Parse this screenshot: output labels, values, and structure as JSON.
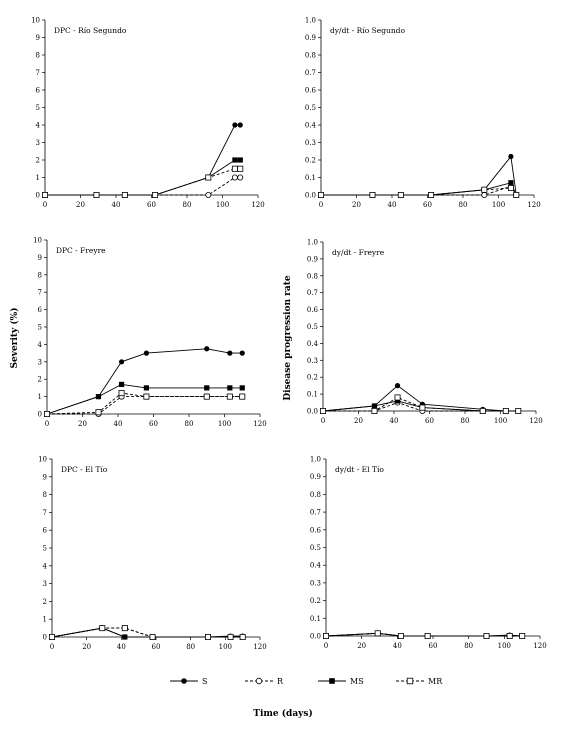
{
  "figure": {
    "ylabel_severity": "Severity (%)",
    "ylabel_rate": "Disease progression rate",
    "xlabel": "Time (days)",
    "legend": [
      {
        "key": "S",
        "label": "S"
      },
      {
        "key": "R",
        "label": "R"
      },
      {
        "key": "MS",
        "label": "MS"
      },
      {
        "key": "MR",
        "label": "MR"
      }
    ]
  },
  "chart_data": [
    {
      "type": "line",
      "title": "DPC - Río Segundo",
      "xlim": [
        0,
        120
      ],
      "ylim": [
        0,
        10
      ],
      "xticks": [
        0,
        20,
        40,
        60,
        80,
        100,
        120
      ],
      "yticks": [
        0,
        1,
        2,
        3,
        4,
        5,
        6,
        7,
        8,
        9,
        10
      ],
      "series": [
        {
          "name": "S",
          "points": [
            [
              0,
              0
            ],
            [
              29,
              0
            ],
            [
              45,
              0
            ],
            [
              62,
              0
            ],
            [
              92,
              1
            ],
            [
              107,
              4
            ],
            [
              110,
              4
            ]
          ]
        },
        {
          "name": "R",
          "points": [
            [
              0,
              0
            ],
            [
              29,
              0
            ],
            [
              45,
              0
            ],
            [
              62,
              0
            ],
            [
              92,
              0
            ],
            [
              107,
              1
            ],
            [
              110,
              1
            ]
          ]
        },
        {
          "name": "MS",
          "points": [
            [
              0,
              0
            ],
            [
              29,
              0
            ],
            [
              45,
              0
            ],
            [
              62,
              0
            ],
            [
              92,
              1
            ],
            [
              107,
              2
            ],
            [
              110,
              2
            ]
          ]
        },
        {
          "name": "MR",
          "points": [
            [
              0,
              0
            ],
            [
              29,
              0
            ],
            [
              45,
              0
            ],
            [
              62,
              0
            ],
            [
              92,
              1
            ],
            [
              107,
              1.5
            ],
            [
              110,
              1.5
            ]
          ]
        }
      ]
    },
    {
      "type": "line",
      "title": "dy/dt - Río Segundo",
      "xlim": [
        0,
        120
      ],
      "ylim": [
        0,
        1
      ],
      "xticks": [
        0,
        20,
        40,
        60,
        80,
        100,
        120
      ],
      "yticks": [
        "0.0",
        "0.1",
        "0.2",
        "0.3",
        "0.4",
        "0.5",
        "0.6",
        "0.7",
        "0.8",
        "0.9",
        "1.0"
      ],
      "series": [
        {
          "name": "S",
          "points": [
            [
              0,
              0
            ],
            [
              29,
              0
            ],
            [
              45,
              0
            ],
            [
              62,
              0
            ],
            [
              92,
              0.03
            ],
            [
              107,
              0.22
            ],
            [
              110,
              0
            ]
          ]
        },
        {
          "name": "R",
          "points": [
            [
              0,
              0
            ],
            [
              29,
              0
            ],
            [
              45,
              0
            ],
            [
              62,
              0
            ],
            [
              92,
              0
            ],
            [
              107,
              0.05
            ],
            [
              110,
              0
            ]
          ]
        },
        {
          "name": "MS",
          "points": [
            [
              0,
              0
            ],
            [
              29,
              0
            ],
            [
              45,
              0
            ],
            [
              62,
              0
            ],
            [
              92,
              0.03
            ],
            [
              107,
              0.07
            ],
            [
              110,
              0
            ]
          ]
        },
        {
          "name": "MR",
          "points": [
            [
              0,
              0
            ],
            [
              29,
              0
            ],
            [
              45,
              0
            ],
            [
              62,
              0
            ],
            [
              92,
              0.03
            ],
            [
              107,
              0.04
            ],
            [
              110,
              0
            ]
          ]
        }
      ]
    },
    {
      "type": "line",
      "title": "DPC - Freyre",
      "xlim": [
        0,
        120
      ],
      "ylim": [
        0,
        10
      ],
      "xticks": [
        0,
        20,
        40,
        60,
        80,
        100,
        120
      ],
      "yticks": [
        0,
        1,
        2,
        3,
        4,
        5,
        6,
        7,
        8,
        9,
        10
      ],
      "series": [
        {
          "name": "S",
          "points": [
            [
              0,
              0
            ],
            [
              29,
              1
            ],
            [
              42,
              3
            ],
            [
              56,
              3.5
            ],
            [
              90,
              3.75
            ],
            [
              103,
              3.5
            ],
            [
              110,
              3.5
            ]
          ]
        },
        {
          "name": "R",
          "points": [
            [
              0,
              0
            ],
            [
              29,
              0
            ],
            [
              42,
              1
            ],
            [
              56,
              1
            ],
            [
              90,
              1
            ],
            [
              103,
              1
            ],
            [
              110,
              1
            ]
          ]
        },
        {
          "name": "MS",
          "points": [
            [
              0,
              0
            ],
            [
              29,
              1
            ],
            [
              42,
              1.7
            ],
            [
              56,
              1.5
            ],
            [
              90,
              1.5
            ],
            [
              103,
              1.5
            ],
            [
              110,
              1.5
            ]
          ]
        },
        {
          "name": "MR",
          "points": [
            [
              0,
              0
            ],
            [
              29,
              0.1
            ],
            [
              42,
              1.2
            ],
            [
              56,
              1
            ],
            [
              90,
              1
            ],
            [
              103,
              1
            ],
            [
              110,
              1
            ]
          ]
        }
      ]
    },
    {
      "type": "line",
      "title": "dy/dt - Freyre",
      "xlim": [
        0,
        120
      ],
      "ylim": [
        0,
        1
      ],
      "xticks": [
        0,
        20,
        40,
        60,
        80,
        100,
        120
      ],
      "yticks": [
        "0.0",
        "0.1",
        "0.2",
        "0.3",
        "0.4",
        "0.5",
        "0.6",
        "0.7",
        "0.8",
        "0.9",
        "1.0"
      ],
      "series": [
        {
          "name": "S",
          "points": [
            [
              0,
              0
            ],
            [
              29,
              0.03
            ],
            [
              42,
              0.15
            ],
            [
              56,
              0.04
            ],
            [
              90,
              0.01
            ],
            [
              103,
              0
            ],
            [
              110,
              0
            ]
          ]
        },
        {
          "name": "R",
          "points": [
            [
              0,
              0
            ],
            [
              29,
              0
            ],
            [
              42,
              0.05
            ],
            [
              56,
              0
            ],
            [
              90,
              0
            ],
            [
              103,
              0
            ],
            [
              110,
              0
            ]
          ]
        },
        {
          "name": "MS",
          "points": [
            [
              0,
              0
            ],
            [
              29,
              0.03
            ],
            [
              42,
              0.06
            ],
            [
              56,
              0.02
            ],
            [
              90,
              0
            ],
            [
              103,
              0
            ],
            [
              110,
              0
            ]
          ]
        },
        {
          "name": "MR",
          "points": [
            [
              0,
              0
            ],
            [
              29,
              0
            ],
            [
              42,
              0.08
            ],
            [
              56,
              0.02
            ],
            [
              90,
              0
            ],
            [
              103,
              0
            ],
            [
              110,
              0
            ]
          ]
        }
      ]
    },
    {
      "type": "line",
      "title": "DPC - El Tío",
      "xlim": [
        0,
        120
      ],
      "ylim": [
        0,
        10
      ],
      "xticks": [
        0,
        20,
        40,
        60,
        80,
        100,
        120
      ],
      "yticks": [
        0,
        1,
        2,
        3,
        4,
        5,
        6,
        7,
        8,
        9,
        10
      ],
      "series": [
        {
          "name": "S",
          "points": [
            [
              0,
              0
            ],
            [
              29,
              0.5
            ],
            [
              42,
              0
            ],
            [
              58,
              0
            ],
            [
              90,
              0
            ],
            [
              103,
              0.05
            ],
            [
              110,
              0.05
            ]
          ]
        },
        {
          "name": "R",
          "points": [
            [
              0,
              0
            ],
            [
              29,
              0.5
            ],
            [
              42,
              0.5
            ],
            [
              58,
              0
            ],
            [
              90,
              0
            ],
            [
              103,
              0
            ],
            [
              110,
              0
            ]
          ]
        },
        {
          "name": "MS",
          "points": [
            [
              0,
              0
            ],
            [
              29,
              0.5
            ],
            [
              42,
              0
            ],
            [
              58,
              0
            ],
            [
              90,
              0
            ],
            [
              103,
              0
            ],
            [
              110,
              0
            ]
          ]
        },
        {
          "name": "MR",
          "points": [
            [
              0,
              0
            ],
            [
              29,
              0.5
            ],
            [
              42,
              0.5
            ],
            [
              58,
              0
            ],
            [
              90,
              0
            ],
            [
              103,
              0
            ],
            [
              110,
              0
            ]
          ]
        }
      ]
    },
    {
      "type": "line",
      "title": "dy/dt - El Tío",
      "xlim": [
        0,
        120
      ],
      "ylim": [
        0,
        1
      ],
      "xticks": [
        0,
        20,
        40,
        60,
        80,
        100,
        120
      ],
      "yticks": [
        "0.0",
        "0.1",
        "0.2",
        "0.3",
        "0.4",
        "0.5",
        "0.6",
        "0.7",
        "0.8",
        "0.9",
        "1.0"
      ],
      "series": [
        {
          "name": "S",
          "points": [
            [
              0,
              0
            ],
            [
              29,
              0.015
            ],
            [
              42,
              0
            ],
            [
              57,
              0
            ],
            [
              90,
              0
            ],
            [
              103,
              0.005
            ],
            [
              110,
              0
            ]
          ]
        },
        {
          "name": "R",
          "points": [
            [
              0,
              0
            ],
            [
              29,
              0.015
            ],
            [
              42,
              0
            ],
            [
              57,
              0
            ],
            [
              90,
              0
            ],
            [
              103,
              0
            ],
            [
              110,
              0
            ]
          ]
        },
        {
          "name": "MS",
          "points": [
            [
              0,
              0
            ],
            [
              29,
              0.015
            ],
            [
              42,
              0
            ],
            [
              57,
              0
            ],
            [
              90,
              0
            ],
            [
              103,
              0
            ],
            [
              110,
              0
            ]
          ]
        },
        {
          "name": "MR",
          "points": [
            [
              0,
              0
            ],
            [
              29,
              0.015
            ],
            [
              42,
              0
            ],
            [
              57,
              0
            ],
            [
              90,
              0
            ],
            [
              103,
              0
            ],
            [
              110,
              0
            ]
          ]
        }
      ]
    }
  ]
}
